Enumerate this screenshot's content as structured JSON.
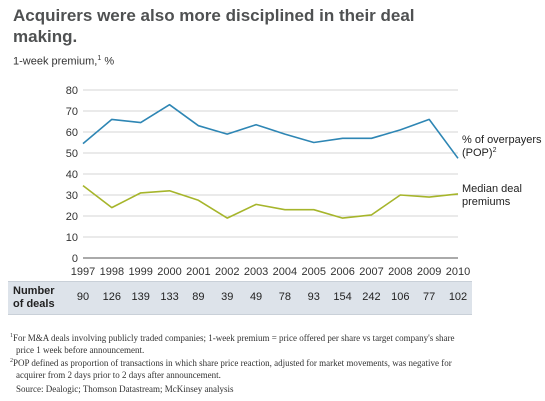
{
  "title": "Acquirers were also more disciplined in their deal making.",
  "y_axis_label": "1-week premium,",
  "y_axis_label_note": "1",
  "y_axis_unit": "%",
  "series_labels": {
    "pop_line1": "% of overpayers",
    "pop_line2": "(POP)",
    "pop_note": "2",
    "median_line1": "Median deal",
    "median_line2": "premiums"
  },
  "colors": {
    "pop_line": "#2e86b4",
    "median_line": "#a6b52b",
    "grid": "#d4d4d4",
    "deals_band": "#dde3ea"
  },
  "deals_row": {
    "label_line1": "Number",
    "label_line2": "of deals",
    "counts": [
      "90",
      "126",
      "139",
      "133",
      "89",
      "39",
      "49",
      "78",
      "93",
      "154",
      "242",
      "106",
      "77",
      "102"
    ]
  },
  "footnotes": {
    "note1_marker": "1",
    "note1_line1": "For M&A deals involving publicly traded companies; 1-week premium = price offered per share vs target company's share",
    "note1_line2": "price 1 week before announcement.",
    "note2_marker": "2",
    "note2_line1": "POP defined as proportion of transactions in which share price reaction, adjusted for market movements, was negative for",
    "note2_line2": "acquirer from 2 days prior to 2 days after announcement.",
    "source": "Source: Dealogic; Thomson Datastream; McKinsey analysis"
  },
  "chart_data": {
    "type": "line",
    "x": [
      "1997",
      "1998",
      "1999",
      "2000",
      "2001",
      "2002",
      "2003",
      "2004",
      "2005",
      "2006",
      "2007",
      "2008",
      "2009",
      "2010"
    ],
    "ylim": [
      0,
      80
    ],
    "yticks": [
      0,
      10,
      20,
      30,
      40,
      50,
      60,
      70,
      80
    ],
    "ylabel": "1-week premium, %",
    "grid": true,
    "series": [
      {
        "name": "% of overpayers (POP)",
        "values": [
          54.5,
          66,
          64.5,
          73,
          63,
          59,
          63.5,
          59,
          55,
          57,
          57,
          61,
          66,
          47.5
        ]
      },
      {
        "name": "Median deal premiums",
        "values": [
          34.5,
          24,
          31,
          32,
          27.5,
          19,
          25.5,
          23,
          23,
          19,
          20.5,
          30,
          29,
          30.5
        ]
      }
    ]
  }
}
